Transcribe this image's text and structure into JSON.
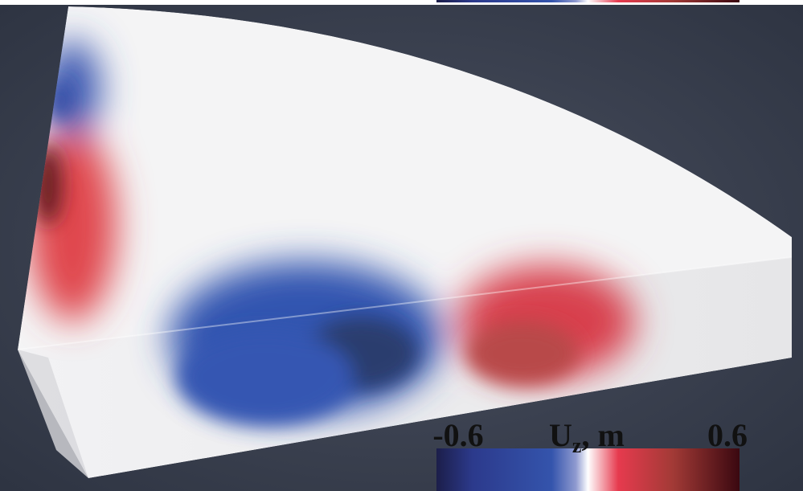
{
  "colorbar": {
    "min_label": "-0.6",
    "quantity": "U",
    "subscript": "z",
    "unit": ", m",
    "max_label": "0.6"
  }
}
